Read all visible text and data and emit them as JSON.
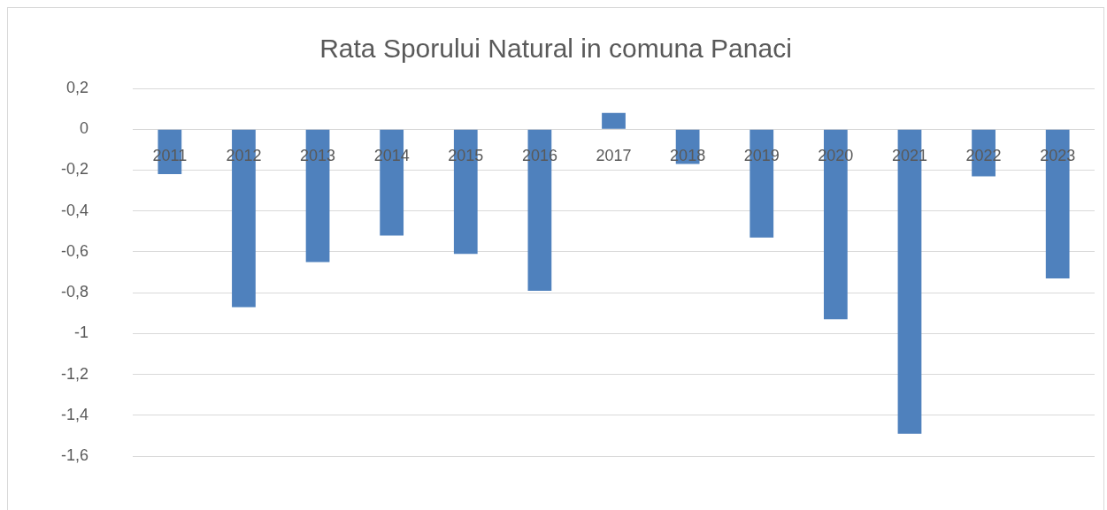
{
  "chart_data": {
    "type": "bar",
    "title": "Rata Sporului Natural in comuna Panaci",
    "categories": [
      "2011",
      "2012",
      "2013",
      "2014",
      "2015",
      "2016",
      "2017",
      "2018",
      "2019",
      "2020",
      "2021",
      "2022",
      "2023"
    ],
    "values": [
      -0.22,
      -0.87,
      -0.65,
      -0.52,
      -0.61,
      -0.79,
      0.08,
      -0.17,
      -0.53,
      -0.93,
      -1.49,
      -0.23,
      -0.73
    ],
    "color": "#4f81bd",
    "ylim": [
      -1.6,
      0.2
    ],
    "yticks": [
      {
        "value": 0.2,
        "label": "0,2"
      },
      0,
      {
        "value": -0.2,
        "label": "-0,2"
      },
      {
        "value": -0.4,
        "label": "-0,4"
      },
      {
        "value": -0.6,
        "label": "-0,6"
      },
      {
        "value": -0.8,
        "label": "-0,8"
      },
      -1,
      {
        "value": -1.2,
        "label": "-1,2"
      },
      {
        "value": -1.4,
        "label": "-1,4"
      },
      {
        "value": -1.6,
        "label": "-1,6"
      }
    ],
    "grid": "y",
    "legend": false
  }
}
